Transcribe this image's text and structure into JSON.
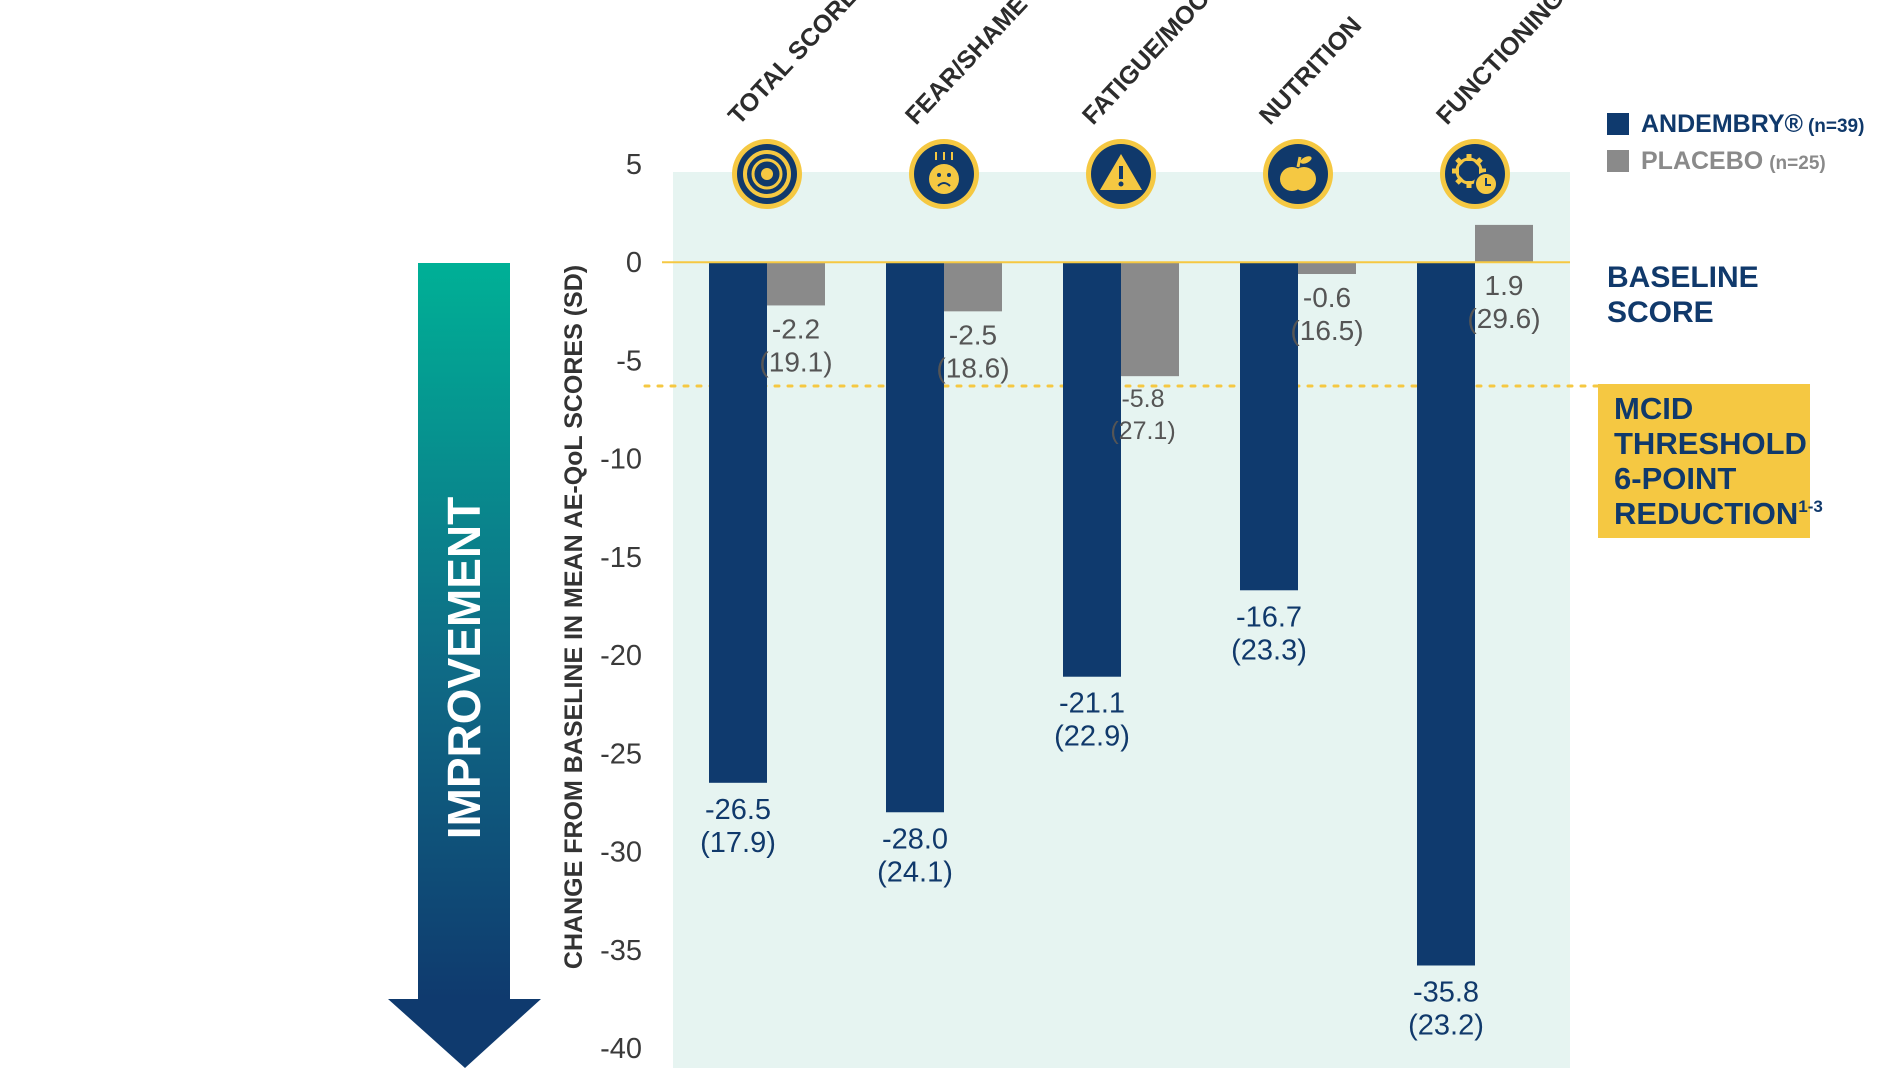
{
  "chart_data": {
    "type": "bar",
    "categories": [
      "TOTAL SCORE",
      "FEAR/SHAME",
      "FATIGUE/MOOD",
      "NUTRITION",
      "FUNCTIONING"
    ],
    "series": [
      {
        "name": "ANDEMBRY®",
        "n_label": "(n=39)",
        "color": "#0f3a6e",
        "values": [
          -26.5,
          -28.0,
          -21.1,
          -16.7,
          -35.8
        ],
        "value_labels": [
          "-26.5",
          "-28.0",
          "-21.1",
          "-16.7",
          "-35.8"
        ],
        "sd_labels": [
          "(17.9)",
          "(24.1)",
          "(22.9)",
          "(23.3)",
          "(23.2)"
        ]
      },
      {
        "name": "PLACEBO",
        "n_label": "(n=25)",
        "color": "#8a8a8a",
        "values": [
          -2.2,
          -2.5,
          -5.8,
          -0.6,
          1.9
        ],
        "value_labels": [
          "-2.2",
          "-2.5",
          "-5.8",
          "-0.6",
          "1.9"
        ],
        "sd_labels": [
          "(19.1)",
          "(18.6)",
          "(27.1)",
          "(16.5)",
          "(29.6)"
        ]
      }
    ],
    "icons": [
      "target-icon",
      "sad-face-icon",
      "warning-icon",
      "apple-icon",
      "gear-clock-icon"
    ],
    "ylabel": "CHANGE FROM BASELINE IN MEAN AE-QoL SCORES (SD)",
    "ylim": [
      -40,
      5
    ],
    "yticks": [
      5,
      0,
      -5,
      -10,
      -15,
      -20,
      -25,
      -30,
      -35,
      -40
    ],
    "ytick_labels": [
      "5",
      "0",
      "-5",
      "-10",
      "-15",
      "-20",
      "-25",
      "-30",
      "-35",
      "-40"
    ],
    "baseline": {
      "value": 0,
      "label_lines": [
        "BASELINE",
        "SCORE"
      ],
      "color": "#f5c842"
    },
    "threshold": {
      "value": -6.3,
      "label_lines": [
        "MCID",
        "THRESHOLD",
        "6-POINT",
        "REDUCTION"
      ],
      "label_sup": "1-3",
      "color": "#f5c842"
    },
    "arrow_label": "IMPROVEMENT",
    "panel_color": "#e6f4f1",
    "legend_position": "top-right"
  }
}
